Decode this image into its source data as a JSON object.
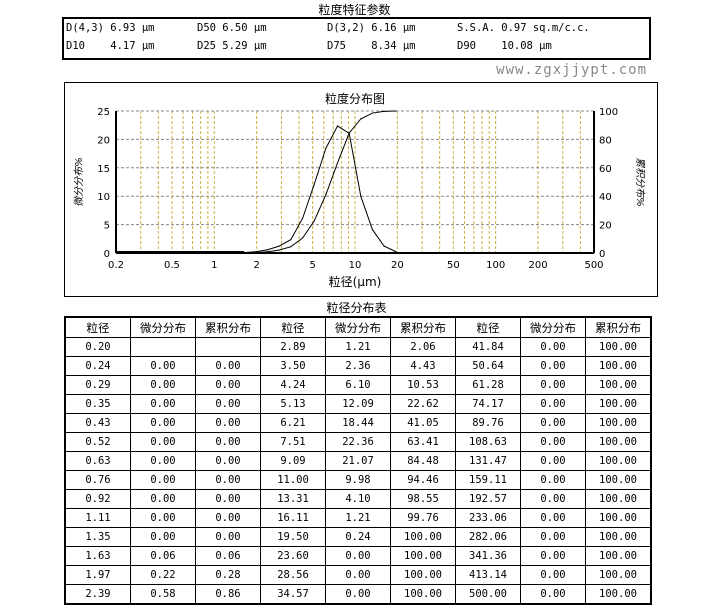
{
  "params": {
    "title": "粒度特征参数",
    "items": [
      [
        "D(4,3) 6.93 μm",
        "D50 6.50 μm",
        "D(3,2) 6.16 μm",
        "S.S.A. 0.97 sq.m/c.c."
      ],
      [
        "D10    4.17 μm",
        "D25 5.29 μm",
        "D75    8.34 μm",
        "D90    10.08 μm"
      ]
    ]
  },
  "chart_data": {
    "type": "line",
    "title": "粒度分布图",
    "xlabel": "粒径(μm)",
    "ylabel": "微分分布%",
    "y2label": "累积分布%",
    "xscale": "log",
    "xlim": [
      0.2,
      500
    ],
    "ylim": [
      0,
      25
    ],
    "y2lim": [
      0,
      100
    ],
    "xticks": [
      "0.2",
      "0.5",
      "1",
      "2",
      "5",
      "10",
      "20",
      "50",
      "100",
      "200",
      "500"
    ],
    "yticks": [
      "0",
      "5",
      "10",
      "15",
      "20",
      "25"
    ],
    "y2ticks": [
      "0",
      "20",
      "40",
      "60",
      "80",
      "100"
    ],
    "x": [
      1.63,
      1.97,
      2.39,
      2.89,
      3.5,
      4.24,
      5.13,
      6.21,
      7.51,
      9.09,
      11.0,
      13.31,
      16.11,
      19.5
    ],
    "series": [
      {
        "name": "微分分布",
        "values": [
          0.06,
          0.22,
          0.58,
          1.21,
          2.36,
          6.1,
          12.09,
          18.44,
          22.36,
          21.07,
          9.98,
          4.1,
          1.21,
          0.24
        ]
      },
      {
        "name": "累积分布",
        "values": [
          0.06,
          0.28,
          0.86,
          2.06,
          4.43,
          10.53,
          22.62,
          41.05,
          63.41,
          84.48,
          94.46,
          98.55,
          99.76,
          100
        ]
      }
    ]
  },
  "table": {
    "title": "粒径分布表",
    "headers": [
      "粒径",
      "微分分布",
      "累积分布",
      "粒径",
      "微分分布",
      "累积分布",
      "粒径",
      "微分分布",
      "累积分布"
    ],
    "rows": [
      [
        "0.20",
        "",
        "",
        "2.89",
        "1.21",
        "2.06",
        "41.84",
        "0.00",
        "100.00"
      ],
      [
        "0.24",
        "0.00",
        "0.00",
        "3.50",
        "2.36",
        "4.43",
        "50.64",
        "0.00",
        "100.00"
      ],
      [
        "0.29",
        "0.00",
        "0.00",
        "4.24",
        "6.10",
        "10.53",
        "61.28",
        "0.00",
        "100.00"
      ],
      [
        "0.35",
        "0.00",
        "0.00",
        "5.13",
        "12.09",
        "22.62",
        "74.17",
        "0.00",
        "100.00"
      ],
      [
        "0.43",
        "0.00",
        "0.00",
        "6.21",
        "18.44",
        "41.05",
        "89.76",
        "0.00",
        "100.00"
      ],
      [
        "0.52",
        "0.00",
        "0.00",
        "7.51",
        "22.36",
        "63.41",
        "108.63",
        "0.00",
        "100.00"
      ],
      [
        "0.63",
        "0.00",
        "0.00",
        "9.09",
        "21.07",
        "84.48",
        "131.47",
        "0.00",
        "100.00"
      ],
      [
        "0.76",
        "0.00",
        "0.00",
        "11.00",
        "9.98",
        "94.46",
        "159.11",
        "0.00",
        "100.00"
      ],
      [
        "0.92",
        "0.00",
        "0.00",
        "13.31",
        "4.10",
        "98.55",
        "192.57",
        "0.00",
        "100.00"
      ],
      [
        "1.11",
        "0.00",
        "0.00",
        "16.11",
        "1.21",
        "99.76",
        "233.06",
        "0.00",
        "100.00"
      ],
      [
        "1.35",
        "0.00",
        "0.00",
        "19.50",
        "0.24",
        "100.00",
        "282.06",
        "0.00",
        "100.00"
      ],
      [
        "1.63",
        "0.06",
        "0.06",
        "23.60",
        "0.00",
        "100.00",
        "341.36",
        "0.00",
        "100.00"
      ],
      [
        "1.97",
        "0.22",
        "0.28",
        "28.56",
        "0.00",
        "100.00",
        "413.14",
        "0.00",
        "100.00"
      ],
      [
        "2.39",
        "0.58",
        "0.86",
        "34.57",
        "0.00",
        "100.00",
        "500.00",
        "0.00",
        "100.00"
      ]
    ]
  },
  "watermark": "www.zgxjjypt.com"
}
